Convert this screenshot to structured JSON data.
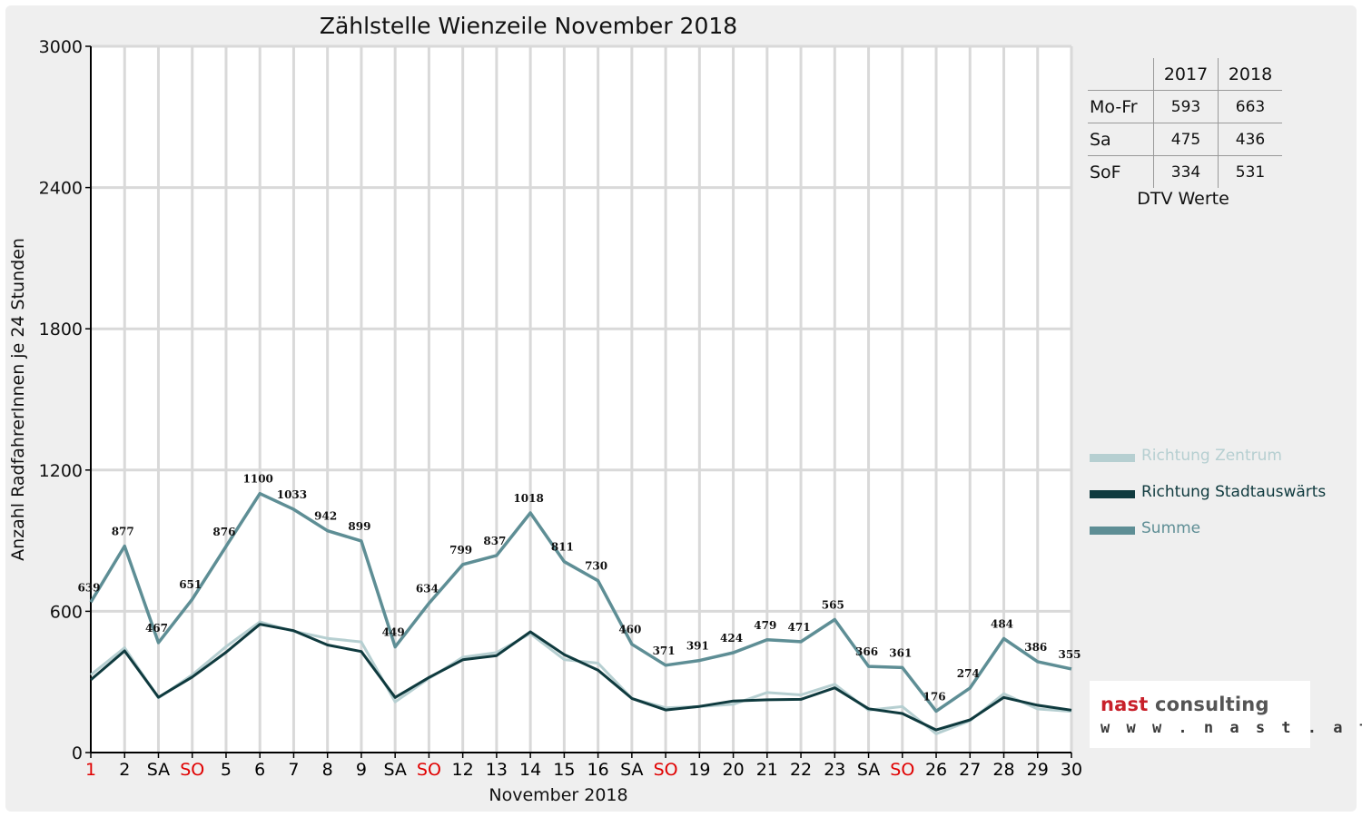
{
  "chart_data": {
    "type": "line",
    "title": "Zählstelle Wienzeile November 2018",
    "xlabel": "November 2018",
    "ylabel": "Anzahl RadfahrerInnen je 24 Stunden",
    "ylim": [
      0,
      3000
    ],
    "yticks": [
      0,
      600,
      1200,
      1800,
      2400,
      3000
    ],
    "grid": true,
    "legend_position": "right",
    "categories": [
      "1",
      "2",
      "SA",
      "SO",
      "5",
      "6",
      "7",
      "8",
      "9",
      "SA",
      "SO",
      "12",
      "13",
      "14",
      "15",
      "16",
      "SA",
      "SO",
      "19",
      "20",
      "21",
      "22",
      "23",
      "SA",
      "SO",
      "26",
      "27",
      "28",
      "29",
      "30"
    ],
    "category_colors": [
      "#e00000",
      "#000000",
      "#000000",
      "#e00000",
      "#000000",
      "#000000",
      "#000000",
      "#000000",
      "#000000",
      "#000000",
      "#e00000",
      "#000000",
      "#000000",
      "#000000",
      "#000000",
      "#000000",
      "#000000",
      "#e00000",
      "#000000",
      "#000000",
      "#000000",
      "#000000",
      "#000000",
      "#000000",
      "#e00000",
      "#000000",
      "#000000",
      "#000000",
      "#000000",
      "#000000"
    ],
    "series": [
      {
        "name": "Richtung Zentrum",
        "color": "#b6cfd1",
        "values": [
          330,
          445,
          232,
          330,
          450,
          555,
          515,
          485,
          470,
          215,
          315,
          405,
          425,
          505,
          395,
          380,
          230,
          190,
          195,
          205,
          255,
          245,
          290,
          180,
          195,
          80,
          135,
          250,
          185,
          175
        ]
      },
      {
        "name": "Richtung Stadtauswärts",
        "color": "#0f3a3e",
        "values": [
          309,
          432,
          235,
          321,
          426,
          545,
          518,
          457,
          429,
          234,
          319,
          394,
          412,
          513,
          416,
          350,
          230,
          181,
          196,
          219,
          224,
          226,
          275,
          186,
          166,
          96,
          139,
          234,
          201,
          180
        ]
      },
      {
        "name": "Summe",
        "color": "#5e8e95",
        "values": [
          639,
          877,
          467,
          651,
          876,
          1100,
          1033,
          942,
          899,
          449,
          634,
          799,
          837,
          1018,
          811,
          730,
          460,
          371,
          391,
          424,
          479,
          471,
          565,
          366,
          361,
          176,
          274,
          484,
          386,
          355
        ],
        "data_labels": true
      }
    ]
  },
  "dtv_table": {
    "headers": [
      "",
      "2017",
      "2018"
    ],
    "rows": [
      {
        "label": "Mo-Fr",
        "v2017": "593",
        "v2018": "663"
      },
      {
        "label": "Sa",
        "v2017": "475",
        "v2018": "436"
      },
      {
        "label": "SoF",
        "v2017": "334",
        "v2018": "531"
      }
    ],
    "caption": "DTV Werte"
  },
  "logo": {
    "word1": "nast",
    "word2": "consulting",
    "url": "w w w . n a s t . a t",
    "color1": "#c8202a",
    "color2": "#555555"
  }
}
